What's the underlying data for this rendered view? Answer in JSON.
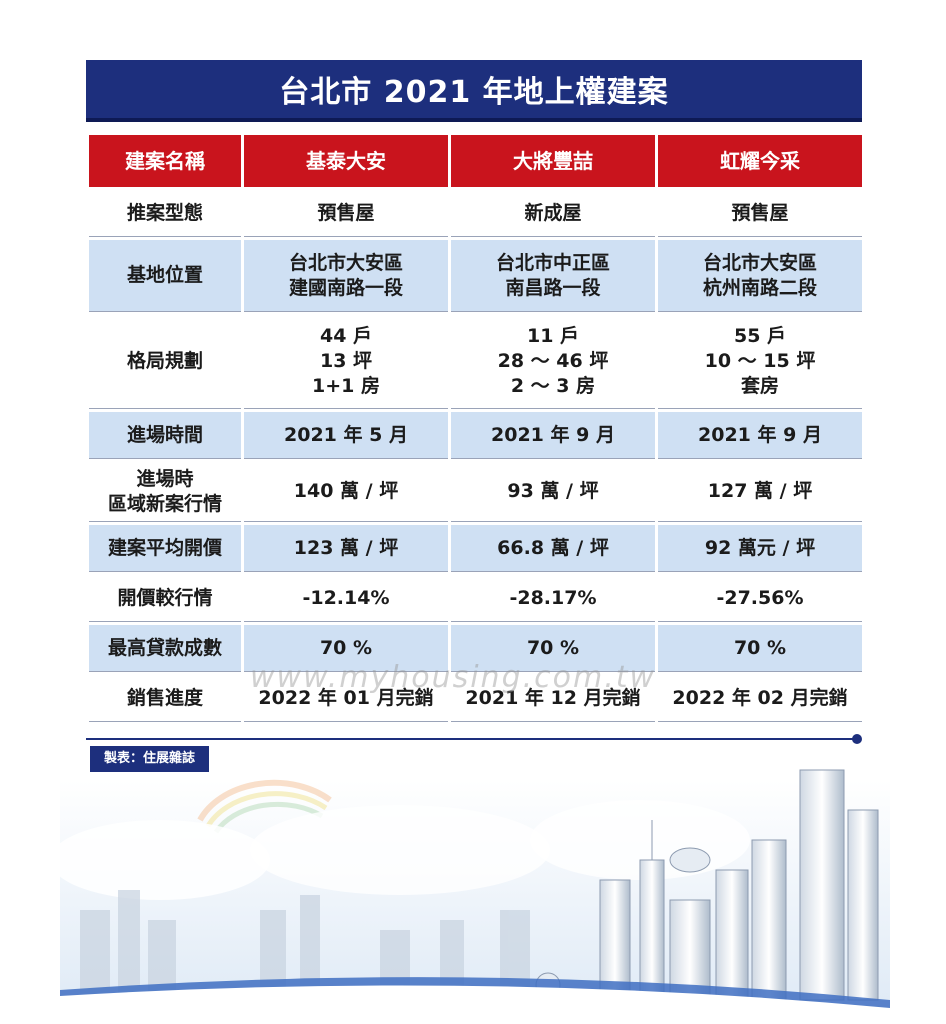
{
  "title": "台北市 2021 年地上權建案",
  "table": {
    "header": [
      "建案名稱",
      "基泰大安",
      "大將豐喆",
      "虹耀今采"
    ],
    "rows": [
      {
        "label": "推案型態",
        "values": [
          "預售屋",
          "新成屋",
          "預售屋"
        ],
        "style": "white"
      },
      {
        "label": "基地位置",
        "values": [
          "台北市大安區\n建國南路一段",
          "台北市中正區\n南昌路一段",
          "台北市大安區\n杭州南路二段"
        ],
        "style": "blue"
      },
      {
        "label": "格局規劃",
        "values": [
          "44 戶\n13 坪\n1+1 房",
          "11 戶\n28 ～ 46 坪\n2 ～ 3 房",
          "55 戶\n10 ～ 15 坪\n套房"
        ],
        "style": "white"
      },
      {
        "label": "進場時間",
        "values": [
          "2021 年 5 月",
          "2021 年 9 月",
          "2021 年 9 月"
        ],
        "style": "blue"
      },
      {
        "label": "進場時\n區域新案行情",
        "values": [
          "140 萬 / 坪",
          "93 萬 / 坪",
          "127 萬 / 坪"
        ],
        "style": "white"
      },
      {
        "label": "建案平均開價",
        "values": [
          "123 萬 / 坪",
          "66.8 萬 / 坪",
          "92 萬元 / 坪"
        ],
        "style": "blue"
      },
      {
        "label": "開價較行情",
        "values": [
          "-12.14%",
          "-28.17%",
          "-27.56%"
        ],
        "style": "white"
      },
      {
        "label": "最高貸款成數",
        "values": [
          "70 %",
          "70 %",
          "70 %"
        ],
        "style": "blue"
      },
      {
        "label": "銷售進度",
        "values": [
          "2022 年 01 月完銷",
          "2021 年 12 月完銷",
          "2022 年 02 月完銷"
        ],
        "style": "white"
      }
    ]
  },
  "source": "製表：住展雜誌",
  "watermark": "www.myhousing.com.tw",
  "colors": {
    "title_bg": "#1d2f7d",
    "header_red": "#c9141d",
    "row_blue": "#cfe0f3"
  }
}
